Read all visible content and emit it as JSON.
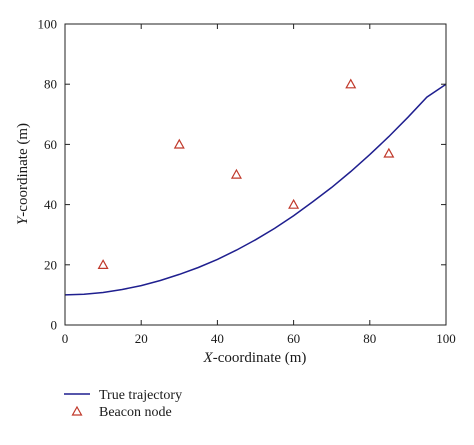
{
  "chart_data": {
    "type": "line",
    "xlabel": {
      "var": "X",
      "rest": "-coordinate (m)"
    },
    "ylabel": {
      "var": "Y",
      "rest": "-coordinate (m)"
    },
    "xlim": [
      0,
      100
    ],
    "ylim": [
      0,
      100
    ],
    "xticks": [
      0,
      20,
      40,
      60,
      80,
      100
    ],
    "yticks": [
      0,
      20,
      40,
      60,
      80,
      100
    ],
    "grid": false,
    "legend_position": "below",
    "series": [
      {
        "name": "True trajectory",
        "kind": "line",
        "color": "#1f1f8f",
        "x": [
          0,
          5,
          10,
          15,
          20,
          25,
          30,
          35,
          40,
          45,
          50,
          55,
          60,
          65,
          70,
          75,
          80,
          85,
          90,
          95,
          100
        ],
        "y": [
          10,
          10.2,
          10.8,
          11.8,
          13.1,
          14.8,
          16.8,
          19.1,
          21.8,
          24.9,
          28.3,
          32.1,
          36.3,
          40.9,
          45.7,
          51.0,
          56.6,
          62.6,
          69.0,
          75.7,
          80
        ]
      },
      {
        "name": "Beacon node",
        "kind": "marker",
        "marker": "triangle",
        "color": "#c0392b",
        "x": [
          10,
          30,
          45,
          60,
          75,
          85
        ],
        "y": [
          20,
          60,
          50,
          40,
          80,
          57
        ]
      }
    ]
  }
}
